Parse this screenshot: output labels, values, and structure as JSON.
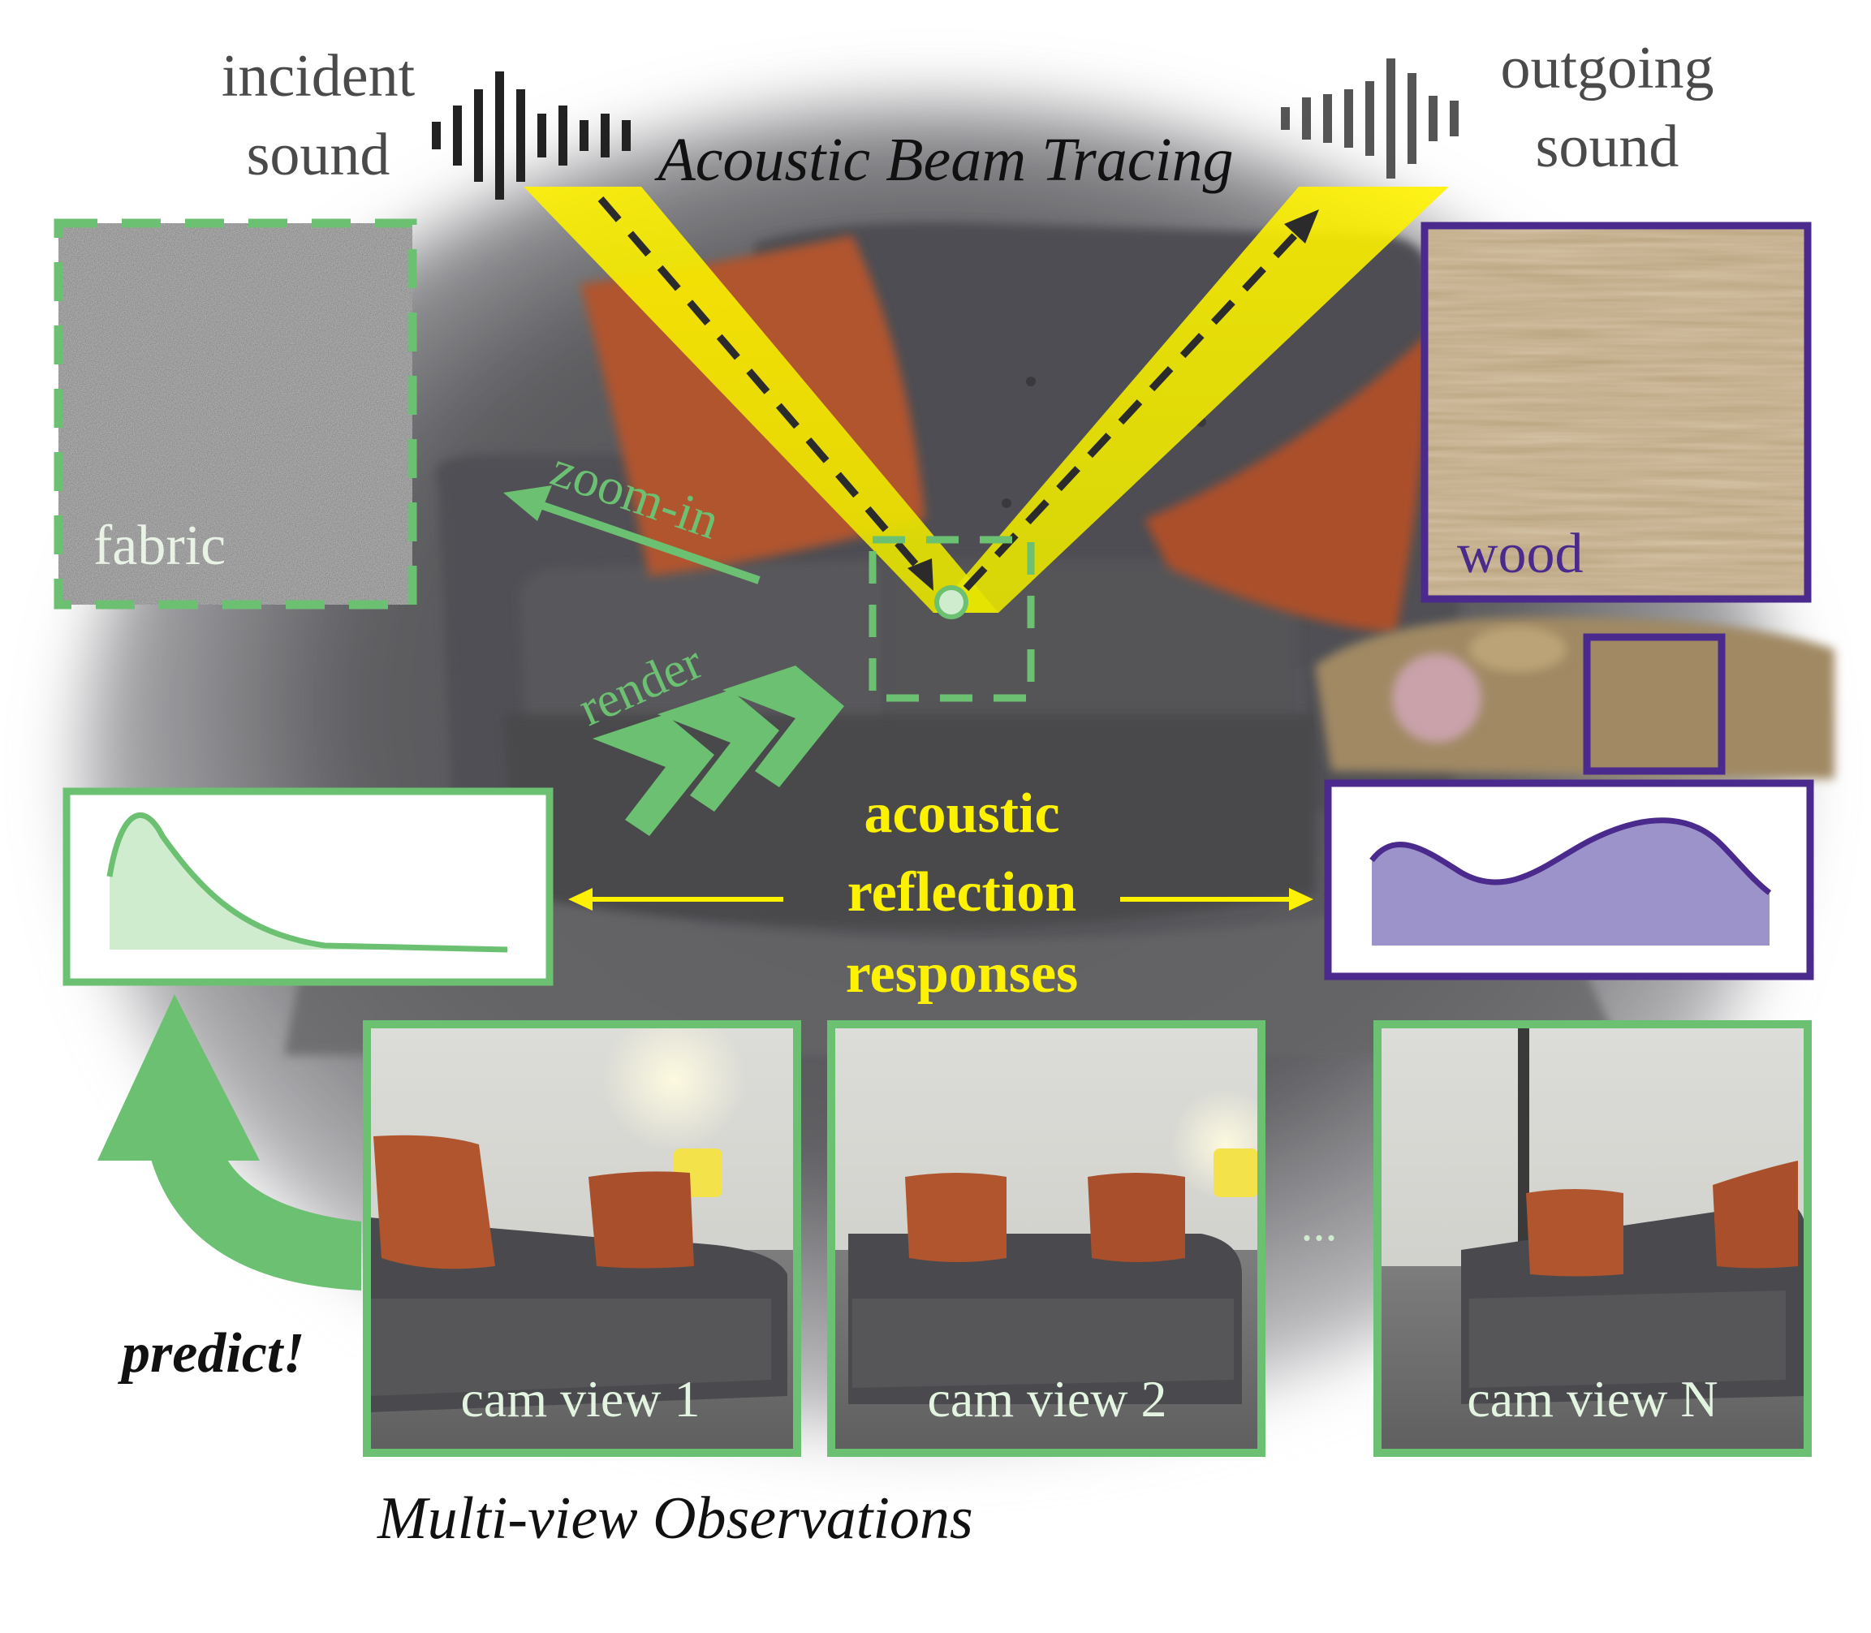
{
  "header": {
    "incident_line1": "incident",
    "incident_line2": "sound",
    "outgoing_line1": "outgoing",
    "outgoing_line2": "sound",
    "beam_title": "Acoustic Beam Tracing"
  },
  "materials": {
    "fabric_label": "fabric",
    "wood_label": "wood"
  },
  "actions": {
    "zoom_label": "zoom-in",
    "render_label": "render",
    "predict_label": "predict!"
  },
  "center": {
    "line1": "acoustic",
    "line2": "reflection",
    "line3": "responses"
  },
  "views": {
    "items": [
      {
        "label": "cam view 1"
      },
      {
        "label": "cam view 2"
      },
      {
        "label": "cam view N"
      }
    ],
    "ellipsis": "...",
    "caption": "Multi-view Observations"
  },
  "colors": {
    "green": "#6cc071",
    "green_light": "#cfeccf",
    "purple": "#4a2a8c",
    "purple_fill": "#9b93c9",
    "yellow": "#fff200",
    "sofa": "#4a4a4e",
    "pillow": "#b0552e",
    "dark_text": "#4a4a4a"
  }
}
